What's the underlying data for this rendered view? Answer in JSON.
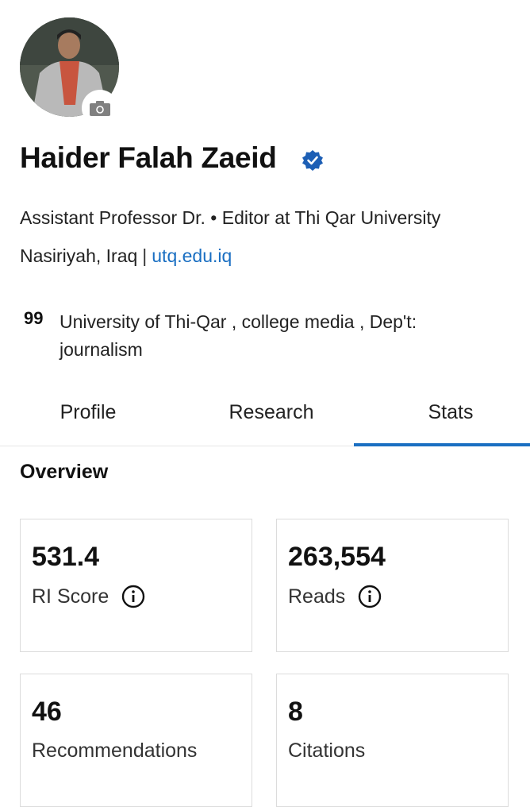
{
  "profile": {
    "name": "Haider Falah Zaeid",
    "headline": "Assistant Professor Dr. • Editor at Thi Qar University",
    "location": "Nasiriyah, Iraq",
    "website": "utq.edu.iq",
    "affiliation": "University of Thi-Qar , college media , Dep't: journalism",
    "quote_glyph": "99",
    "verified": true
  },
  "tabs": [
    {
      "label": "Profile",
      "active": false
    },
    {
      "label": "Research",
      "active": false
    },
    {
      "label": "Stats",
      "active": true
    }
  ],
  "overview": {
    "title": "Overview",
    "cards": [
      {
        "value": "531.4",
        "label": "RI Score",
        "info": true
      },
      {
        "value": "263,554",
        "label": "Reads",
        "info": true
      },
      {
        "value": "46",
        "label": "Recommendations",
        "info": false
      },
      {
        "value": "8",
        "label": "Citations",
        "info": false
      }
    ]
  },
  "colors": {
    "accent": "#1a6fc2",
    "verified": "#1d5fb5"
  }
}
